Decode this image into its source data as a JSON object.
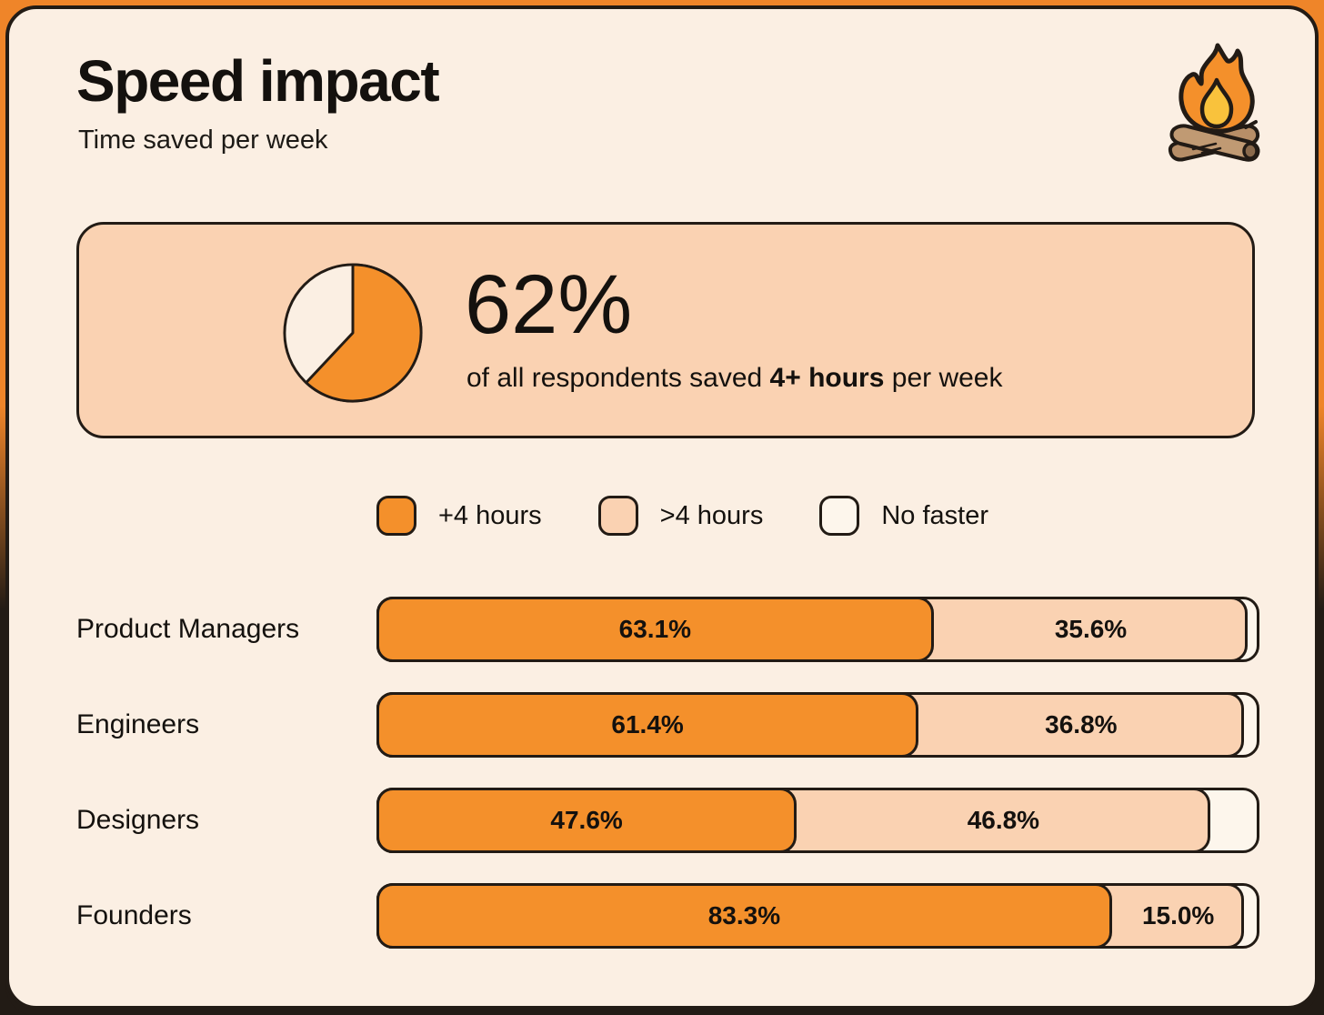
{
  "page": {
    "title": "Speed impact",
    "subtitle": "Time saved per week"
  },
  "colors": {
    "background_orange": "#EF8529",
    "card_cream": "#FBEFE3",
    "callout_peach": "#FAD2B2",
    "bar_orange": "#F4902B",
    "bar_peach": "#FAD2B2",
    "bar_none": "#FDF6EC",
    "outline_dark": "#221B15",
    "flame_yellow": "#F9C23C",
    "log_brown": "#B78E67"
  },
  "icons": {
    "campfire": "campfire-icon"
  },
  "callout": {
    "value": "62%",
    "caption_prefix": "of all respondents saved ",
    "caption_bold": "4+ hours",
    "caption_suffix": " per week",
    "pie_percent": 62
  },
  "legend": [
    {
      "label": "+4 hours",
      "color": "#F4902B"
    },
    {
      "label": ">4 hours",
      "color": "#FAD2B2"
    },
    {
      "label": "No faster",
      "color": "#FDF6EC"
    }
  ],
  "chart_data": {
    "type": "bar",
    "orientation": "horizontal",
    "stacked": true,
    "title": "Speed impact",
    "subtitle": "Time saved per week",
    "categories": [
      "Product Managers",
      "Engineers",
      "Designers",
      "Founders"
    ],
    "series": [
      {
        "name": "+4 hours",
        "values": [
          63.1,
          61.4,
          47.6,
          83.3
        ],
        "labels_shown": true
      },
      {
        "name": ">4 hours",
        "values": [
          35.6,
          36.8,
          46.8,
          15.0
        ],
        "labels_shown": true
      },
      {
        "name": "No faster",
        "values": [
          1.3,
          1.8,
          5.6,
          1.7
        ],
        "labels_shown": false
      }
    ],
    "xlim": [
      0,
      100
    ],
    "highlight": "62% of all respondents saved 4+ hours per week",
    "legend_position": "top-center",
    "grid": false
  },
  "layout": {
    "row_tops": [
      646,
      751,
      856,
      961
    ]
  }
}
